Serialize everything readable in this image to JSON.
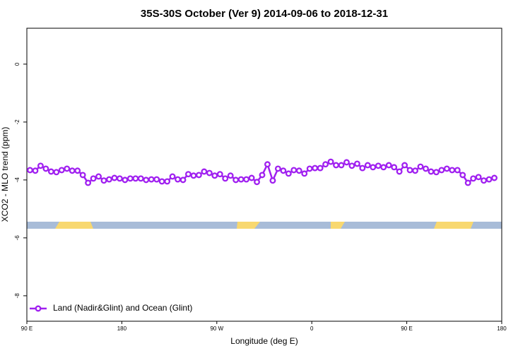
{
  "chart_data": {
    "type": "line",
    "title": "35S-30S October (Ver 9)   2014-09-06 to 2018-12-31",
    "x_label": "Longitude (deg E)",
    "y_label": "XCO2 - MLO trend (ppm)",
    "x": [
      93,
      98,
      103,
      108,
      113,
      118,
      123,
      128,
      133,
      138,
      143,
      148,
      153,
      158,
      163,
      168,
      173,
      178,
      183,
      188,
      193,
      198,
      203,
      208,
      213,
      218,
      223,
      228,
      233,
      238,
      243,
      248,
      253,
      258,
      263,
      268,
      273,
      278,
      283,
      288,
      293,
      298,
      303,
      308,
      313,
      318,
      323,
      328,
      333,
      338,
      343,
      348,
      353,
      358,
      363,
      368,
      373,
      378,
      383,
      388,
      393,
      398,
      403,
      408,
      413,
      418,
      423,
      428,
      433,
      438,
      443,
      448,
      453,
      458,
      463,
      468,
      473,
      478,
      483,
      488,
      493,
      498,
      503,
      508,
      513,
      518,
      523,
      528,
      533
    ],
    "series": [
      {
        "name": "Land (Nadir&Glint) and Ocean (Glint)",
        "color": "#a020f0",
        "values": [
          -3.66,
          -3.68,
          -3.51,
          -3.61,
          -3.71,
          -3.73,
          -3.66,
          -3.61,
          -3.68,
          -3.68,
          -3.83,
          -4.1,
          -3.95,
          -3.88,
          -4.02,
          -3.98,
          -3.93,
          -3.95,
          -4.0,
          -3.95,
          -3.95,
          -3.95,
          -4.0,
          -3.98,
          -3.98,
          -4.05,
          -4.05,
          -3.88,
          -3.98,
          -4.0,
          -3.8,
          -3.85,
          -3.83,
          -3.71,
          -3.76,
          -3.85,
          -3.8,
          -3.95,
          -3.85,
          -4.0,
          -3.98,
          -3.98,
          -3.93,
          -4.07,
          -3.83,
          -3.46,
          -4.02,
          -3.61,
          -3.68,
          -3.78,
          -3.66,
          -3.68,
          -3.78,
          -3.61,
          -3.59,
          -3.59,
          -3.46,
          -3.37,
          -3.49,
          -3.49,
          -3.39,
          -3.51,
          -3.44,
          -3.59,
          -3.49,
          -3.56,
          -3.51,
          -3.56,
          -3.49,
          -3.56,
          -3.71,
          -3.49,
          -3.66,
          -3.68,
          -3.54,
          -3.61,
          -3.71,
          -3.73,
          -3.66,
          -3.61,
          -3.66,
          -3.66,
          -3.83,
          -4.1,
          -3.95,
          -3.9,
          -4.02,
          -3.98,
          -3.93
        ]
      }
    ],
    "xlim": [
      90,
      540
    ],
    "xticks": [
      {
        "value": 90,
        "label": "90 E"
      },
      180,
      {
        "value": 270,
        "label": "90 W"
      },
      {
        "value": 360,
        "label": "0"
      },
      {
        "value": 450,
        "label": "90 E"
      },
      {
        "value": 540,
        "label": "180"
      }
    ],
    "ylim": [
      -8.88,
      1.24
    ],
    "yticks": [
      0,
      -2,
      -4,
      -6,
      -8
    ],
    "legend": "bottom-left"
  }
}
